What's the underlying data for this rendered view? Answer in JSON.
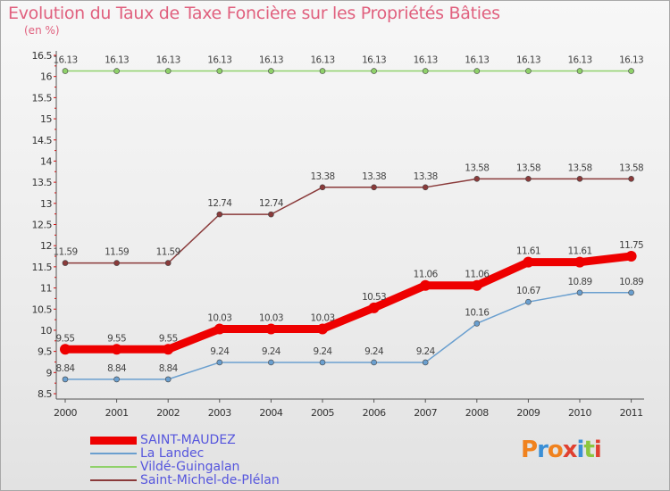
{
  "title": "Evolution du Taux de Taxe Foncière sur les Propriétés Bâties",
  "unit": "(en %)",
  "logo": {
    "text": "Proxiti",
    "colors": [
      "#f0821e",
      "#3a8fd6",
      "#f0821e",
      "#e04030",
      "#3a8fd6",
      "#8cc63e",
      "#e04030"
    ]
  },
  "chart_data": {
    "type": "line",
    "categories": [
      "2000",
      "2001",
      "2002",
      "2003",
      "2004",
      "2005",
      "2006",
      "2007",
      "2008",
      "2009",
      "2010",
      "2011"
    ],
    "ylim": [
      8.5,
      16.5
    ],
    "yticks": [
      "8.5",
      "9",
      "9.5",
      "10",
      "10.5",
      "11",
      "11.5",
      "12",
      "12.5",
      "13",
      "13.5",
      "14",
      "14.5",
      "15",
      "15.5",
      "16",
      "16.5"
    ],
    "grid": false,
    "legend_position": "bottom-left",
    "series": [
      {
        "name": "SAINT-MAUDEZ",
        "color": "#ee0000",
        "values": [
          9.55,
          9.55,
          9.55,
          10.03,
          10.03,
          10.03,
          10.53,
          11.06,
          11.06,
          11.61,
          11.61,
          11.75
        ],
        "labels": [
          "9.55",
          "9.55",
          "9.55",
          "10.03",
          "10.03",
          "10.03",
          "10.53",
          "11.06",
          "11.06",
          "11.61",
          "11.61",
          "11.75"
        ]
      },
      {
        "name": "La Landec",
        "color": "#6a9fcf",
        "values": [
          8.84,
          8.84,
          8.84,
          9.24,
          9.24,
          9.24,
          9.24,
          9.24,
          10.16,
          10.67,
          10.89,
          10.89
        ],
        "labels": [
          "8.84",
          "8.84",
          "8.84",
          "9.24",
          "9.24",
          "9.24",
          "9.24",
          "9.24",
          "10.16",
          "10.67",
          "10.89",
          "10.89"
        ]
      },
      {
        "name": "Vildé-Guingalan",
        "color": "#8fd16a",
        "values": [
          16.13,
          16.13,
          16.13,
          16.13,
          16.13,
          16.13,
          16.13,
          16.13,
          16.13,
          16.13,
          16.13,
          16.13
        ],
        "labels": [
          "16.13",
          "16.13",
          "16.13",
          "16.13",
          "16.13",
          "16.13",
          "16.13",
          "16.13",
          "16.13",
          "16.13",
          "16.13",
          "16.13"
        ]
      },
      {
        "name": "Saint-Michel-de-Plélan",
        "color": "#8a3a3a",
        "values": [
          11.59,
          11.59,
          11.59,
          12.74,
          12.74,
          13.38,
          13.38,
          13.38,
          13.58,
          13.58,
          13.58,
          13.58
        ],
        "labels": [
          "11.59",
          "11.59",
          "11.59",
          "12.74",
          "12.74",
          "13.38",
          "13.38",
          "13.38",
          "13.58",
          "13.58",
          "13.58",
          "13.58"
        ]
      }
    ]
  }
}
